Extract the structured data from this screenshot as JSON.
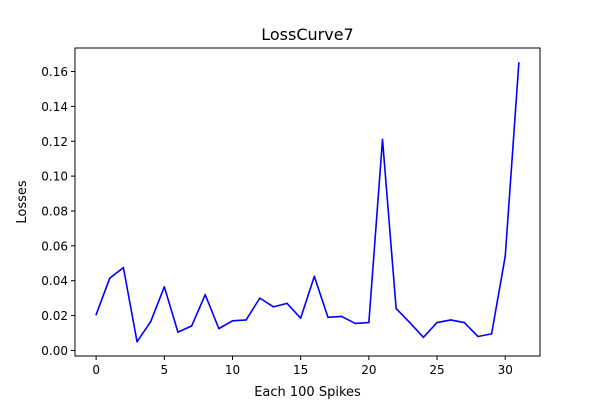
{
  "chart_data": {
    "type": "line",
    "title": "LossCurve7",
    "xlabel": "Each 100 Spikes",
    "ylabel": "Losses",
    "xlim": [
      -1.55,
      32.55
    ],
    "ylim": [
      -0.0032,
      0.1735
    ],
    "x_ticks": [
      0,
      5,
      10,
      15,
      20,
      25,
      30
    ],
    "x_tick_labels": [
      "0",
      "5",
      "10",
      "15",
      "20",
      "25",
      "30"
    ],
    "y_ticks": [
      0.0,
      0.02,
      0.04,
      0.06,
      0.08,
      0.1,
      0.12,
      0.14,
      0.16
    ],
    "y_tick_labels": [
      "0.00",
      "0.02",
      "0.04",
      "0.06",
      "0.08",
      "0.10",
      "0.12",
      "0.14",
      "0.16"
    ],
    "grid": false,
    "series": [
      {
        "color": "#0000ff",
        "x": [
          0,
          1,
          2,
          3,
          4,
          5,
          6,
          7,
          8,
          9,
          10,
          11,
          12,
          13,
          14,
          15,
          16,
          17,
          18,
          19,
          20,
          21,
          22,
          23,
          24,
          25,
          26,
          27,
          28,
          29,
          30,
          31
        ],
        "values": [
          0.0205,
          0.0415,
          0.0475,
          0.005,
          0.0165,
          0.0365,
          0.0105,
          0.014,
          0.032,
          0.0125,
          0.017,
          0.0175,
          0.03,
          0.025,
          0.027,
          0.0185,
          0.0425,
          0.019,
          0.0195,
          0.0155,
          0.016,
          0.121,
          0.024,
          0.016,
          0.0075,
          0.016,
          0.0175,
          0.016,
          0.008,
          0.0095,
          0.054,
          0.165
        ]
      }
    ]
  }
}
